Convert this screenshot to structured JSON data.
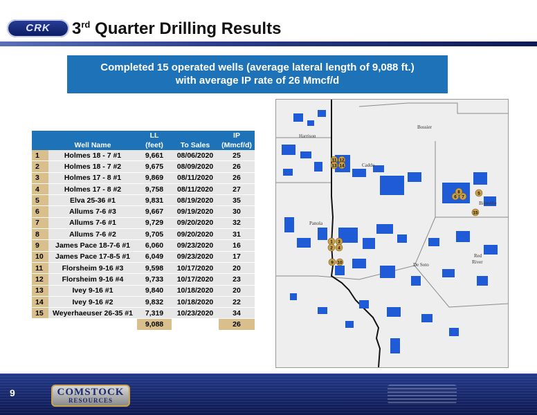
{
  "header": {
    "logo_text": "CRK",
    "title_main": "3",
    "title_sup": "rd",
    "title_rest": " Quarter Drilling Results"
  },
  "banner": {
    "line1": "Completed 15 operated wells  (average lateral length of 9,088 ft.)",
    "line2": "with average IP rate of 26 Mmcf/d"
  },
  "table": {
    "headers": {
      "well_name": "Well Name",
      "ll_top": "LL",
      "ll_bottom": "(feet)",
      "to_sales": "To Sales",
      "ip_top": "IP",
      "ip_bottom": "(Mmcf/d)"
    },
    "rows": [
      {
        "n": "1",
        "name": "Holmes 18 - 7 #1",
        "ll": "9,661",
        "sales": "08/06/2020",
        "ip": "25"
      },
      {
        "n": "2",
        "name": "Holmes 18 - 7 #2",
        "ll": "9,675",
        "sales": "08/09/2020",
        "ip": "26"
      },
      {
        "n": "3",
        "name": "Holmes 17 - 8 #1",
        "ll": "9,869",
        "sales": "08/11/2020",
        "ip": "26"
      },
      {
        "n": "4",
        "name": "Holmes 17 - 8 #2",
        "ll": "9,758",
        "sales": "08/11/2020",
        "ip": "27"
      },
      {
        "n": "5",
        "name": "Elva 25-36 #1",
        "ll": "9,831",
        "sales": "08/19/2020",
        "ip": "35"
      },
      {
        "n": "6",
        "name": "Allums 7-6 #3",
        "ll": "9,667",
        "sales": "09/19/2020",
        "ip": "30"
      },
      {
        "n": "7",
        "name": "Allums 7-6 #1",
        "ll": "9,729",
        "sales": "09/20/2020",
        "ip": "32"
      },
      {
        "n": "8",
        "name": "Allums 7-6 #2",
        "ll": "9,705",
        "sales": "09/20/2020",
        "ip": "31"
      },
      {
        "n": "9",
        "name": "James Pace 18-7-6 #1",
        "ll": "6,060",
        "sales": "09/23/2020",
        "ip": "16"
      },
      {
        "n": "10",
        "name": "James Pace 17-8-5 #1",
        "ll": "6,049",
        "sales": "09/23/2020",
        "ip": "17"
      },
      {
        "n": "11",
        "name": "Florsheim 9-16 #3",
        "ll": "9,598",
        "sales": "10/17/2020",
        "ip": "20"
      },
      {
        "n": "12",
        "name": "Florsheim 9-16 #4",
        "ll": "9,733",
        "sales": "10/17/2020",
        "ip": "23"
      },
      {
        "n": "13",
        "name": "Ivey 9-16 #1",
        "ll": "9,840",
        "sales": "10/18/2020",
        "ip": "20"
      },
      {
        "n": "14",
        "name": "Ivey 9-16 #2",
        "ll": "9,832",
        "sales": "10/18/2020",
        "ip": "22"
      },
      {
        "n": "15",
        "name": "Weyerhaeuser 26-35 #1",
        "ll": "7,319",
        "sales": "10/23/2020",
        "ip": "34"
      }
    ],
    "avg_ll": "9,088",
    "avg_ip": "26"
  },
  "map": {
    "labels": {
      "harrison": "Harrison",
      "bossier": "Bossier",
      "caddo": "Caddo",
      "panola": "Panola",
      "bienville": "Bienville",
      "desoto": "De Soto",
      "red": "Red",
      "river": "River"
    },
    "markers": [
      "1",
      "2",
      "3",
      "4",
      "5",
      "6",
      "7",
      "8",
      "9",
      "10",
      "11",
      "12",
      "13",
      "14",
      "15"
    ]
  },
  "footer": {
    "page_number": "9",
    "logo_top": "COMSTOCK",
    "logo_bottom": "RESOURCES"
  }
}
